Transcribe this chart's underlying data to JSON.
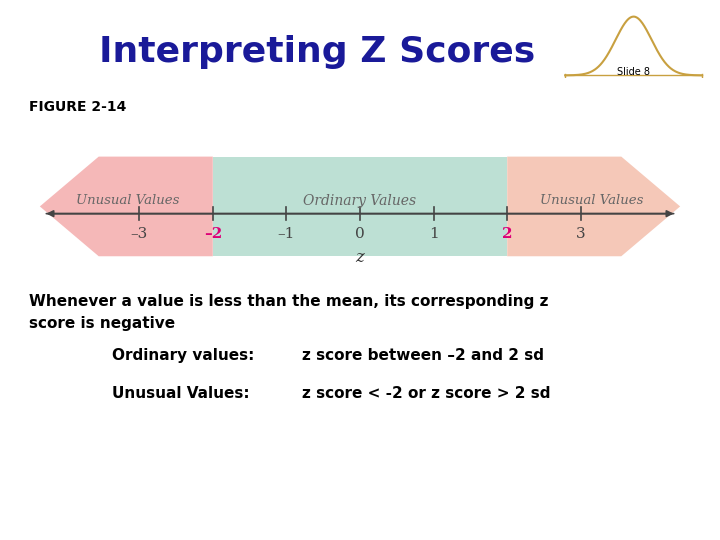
{
  "title": "Interpreting Z Scores",
  "slide_label": "Slide 8",
  "figure_label": "FIGURE 2-14",
  "title_color": "#1a1a99",
  "background_color": "#ffffff",
  "tick_values": [
    -3,
    -2,
    -1,
    0,
    1,
    2,
    3
  ],
  "tick_labels": [
    "–3",
    "–2",
    "–1",
    "0",
    "1",
    "2",
    "3"
  ],
  "tick_special": [
    -2,
    2
  ],
  "tick_special_color": "#dd0077",
  "tick_normal_color": "#444444",
  "z_label": "z",
  "ordinary_label": "Ordinary Values",
  "unusual_label_left": "Unusual Values",
  "unusual_label_right": "Unusual Values",
  "ordinary_region_color": "#bde0d4",
  "unusual_region_color_left": "#f5b8b8",
  "unusual_region_color_right": "#f5c8b8",
  "axis_line_color": "#444444",
  "body_text_line1": "Whenever a value is less than the mean, its corresponding z",
  "body_text_line2": "score is negative",
  "bullet1_label": "Ordinary values:",
  "bullet1_value": "z score between –2 and 2 sd",
  "bullet2_label": "Unusual Values:",
  "bullet2_value": "z score < -2 or z score > 2 sd"
}
